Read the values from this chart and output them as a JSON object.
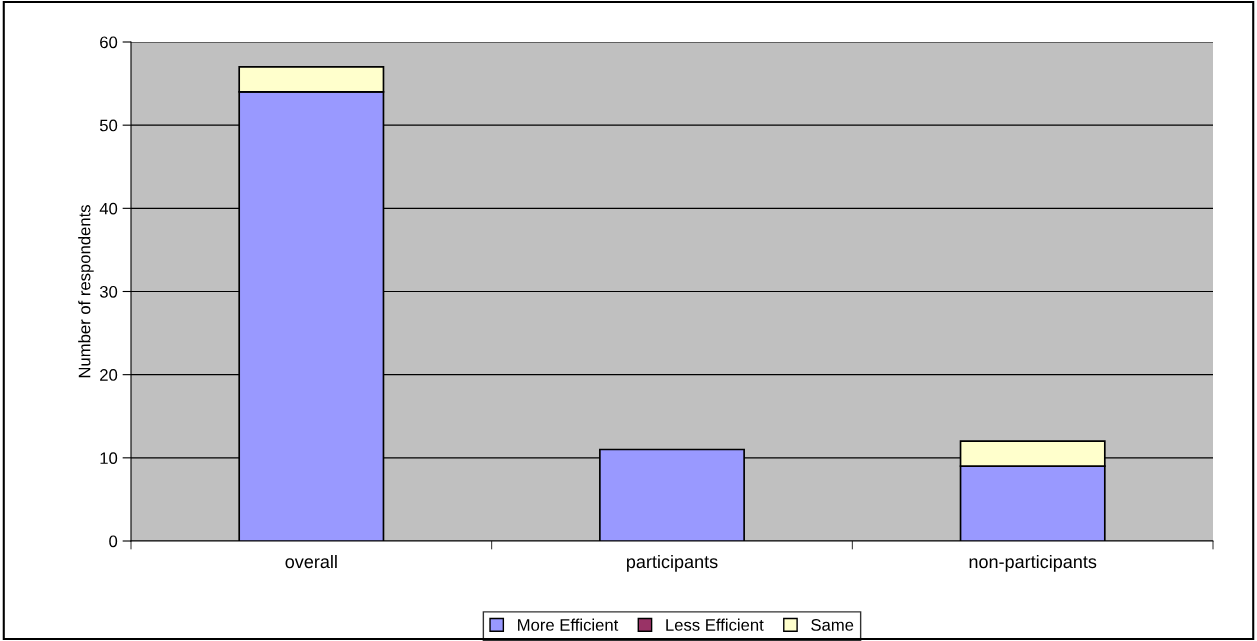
{
  "chart_data": {
    "type": "bar",
    "stacked": true,
    "ylabel": "Number of respondents",
    "categories": [
      "overall",
      "participants",
      "non-participants"
    ],
    "series": [
      {
        "name": "More Efficient",
        "color": "#9999ff",
        "values": [
          54,
          11,
          9
        ]
      },
      {
        "name": "Less Efficient",
        "color": "#993366",
        "values": [
          0,
          0,
          0
        ]
      },
      {
        "name": "Same",
        "color": "#ffffcc",
        "values": [
          3,
          0,
          3
        ]
      }
    ],
    "ylim": [
      0,
      60
    ],
    "yticks": [
      0,
      10,
      20,
      30,
      40,
      50,
      60
    ],
    "grid": "y",
    "legend": "bottom"
  }
}
